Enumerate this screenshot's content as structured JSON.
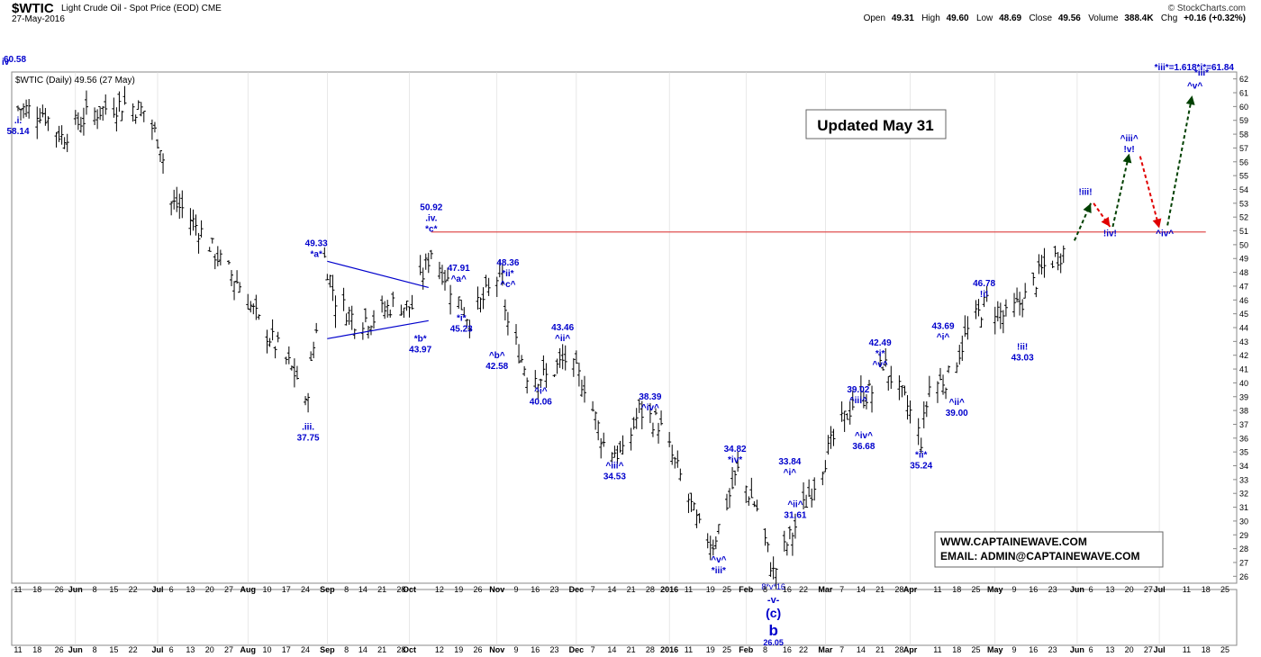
{
  "header": {
    "symbol": "$WTIC",
    "description": "Light Crude Oil - Spot Price (EOD) CME",
    "date": "27-May-2016",
    "brand": "© StockCharts.com",
    "ohlc": [
      {
        "label": "Open",
        "value": "49.31"
      },
      {
        "label": "High",
        "value": "49.60"
      },
      {
        "label": "Low",
        "value": "48.69"
      },
      {
        "label": "Close",
        "value": "49.56"
      },
      {
        "label": "Volume",
        "value": "388.4K"
      },
      {
        "label": "Chg",
        "value": "+0.16 (+0.32%)"
      }
    ]
  },
  "chart_data": {
    "type": "ohlc",
    "legend": "$WTIC (Daily) 49.56 (27 May)",
    "ylim": [
      25.5,
      62.5
    ],
    "y_ticks": [
      26,
      27,
      28,
      29,
      30,
      31,
      32,
      33,
      34,
      35,
      36,
      37,
      38,
      39,
      40,
      41,
      42,
      43,
      44,
      45,
      46,
      47,
      48,
      49,
      50,
      51,
      52,
      53,
      54,
      55,
      56,
      57,
      58,
      59,
      60,
      61,
      62
    ],
    "x_ticks": [
      "11",
      "18",
      "26",
      "Jun",
      "8",
      "15",
      "22",
      "Jul",
      "6",
      "13",
      "20",
      "27",
      "Aug",
      "10",
      "17",
      "24",
      "Sep",
      "8",
      "14",
      "21",
      "28",
      "Oct",
      "12",
      "19",
      "26",
      "Nov",
      "9",
      "16",
      "23",
      "Dec",
      "7",
      "14",
      "21",
      "28",
      "2016",
      "11",
      "19",
      "25",
      "Feb",
      "8",
      "16",
      "22",
      "Mar",
      "7",
      "14",
      "21",
      "28",
      "Apr",
      "11",
      "18",
      "25",
      "May",
      "9",
      "16",
      "23",
      "Jun",
      "6",
      "13",
      "20",
      "27",
      "Jul",
      "11",
      "18",
      "25"
    ],
    "x_tick_dates": [
      "2015-05-11",
      "2015-05-18",
      "2015-05-26",
      "2015-06-01",
      "2015-06-08",
      "2015-06-15",
      "2015-06-22",
      "2015-07-01",
      "2015-07-06",
      "2015-07-13",
      "2015-07-20",
      "2015-07-27",
      "2015-08-03",
      "2015-08-10",
      "2015-08-17",
      "2015-08-24",
      "2015-09-01",
      "2015-09-08",
      "2015-09-14",
      "2015-09-21",
      "2015-09-28",
      "2015-10-01",
      "2015-10-12",
      "2015-10-19",
      "2015-10-26",
      "2015-11-02",
      "2015-11-09",
      "2015-11-16",
      "2015-11-23",
      "2015-12-01",
      "2015-12-07",
      "2015-12-14",
      "2015-12-21",
      "2015-12-28",
      "2016-01-04",
      "2016-01-11",
      "2016-01-19",
      "2016-01-25",
      "2016-02-01",
      "2016-02-08",
      "2016-02-16",
      "2016-02-22",
      "2016-03-01",
      "2016-03-07",
      "2016-03-14",
      "2016-03-21",
      "2016-03-28",
      "2016-04-01",
      "2016-04-11",
      "2016-04-18",
      "2016-04-25",
      "2016-05-02",
      "2016-05-09",
      "2016-05-16",
      "2016-05-23",
      "2016-06-01",
      "2016-06-06",
      "2016-06-13",
      "2016-06-20",
      "2016-06-27",
      "2016-07-01",
      "2016-07-11",
      "2016-07-18",
      "2016-07-25"
    ],
    "anchors": [
      {
        "date": "2015-05-11",
        "close": 59.9
      },
      {
        "date": "2015-05-20",
        "close": 59.6
      },
      {
        "date": "2015-05-27",
        "close": 57.8
      },
      {
        "date": "2015-06-05",
        "close": 59.3
      },
      {
        "date": "2015-06-12",
        "close": 59.9
      },
      {
        "date": "2015-06-19",
        "close": 60.2
      },
      {
        "date": "2015-06-26",
        "close": 59.7
      },
      {
        "date": "2015-07-02",
        "close": 57.3
      },
      {
        "date": "2015-07-06",
        "close": 53.0
      },
      {
        "date": "2015-07-10",
        "close": 52.6
      },
      {
        "date": "2015-07-17",
        "close": 50.9
      },
      {
        "date": "2015-07-24",
        "close": 48.8
      },
      {
        "date": "2015-07-31",
        "close": 47.1
      },
      {
        "date": "2015-08-07",
        "close": 44.4
      },
      {
        "date": "2015-08-14",
        "close": 42.5
      },
      {
        "date": "2015-08-21",
        "close": 40.4
      },
      {
        "date": "2015-08-24",
        "close": 38.2
      },
      {
        "date": "2015-08-27",
        "close": 42.6
      },
      {
        "date": "2015-08-31",
        "close": 49.0
      },
      {
        "date": "2015-09-04",
        "close": 46.1
      },
      {
        "date": "2015-09-11",
        "close": 44.6
      },
      {
        "date": "2015-09-18",
        "close": 44.7
      },
      {
        "date": "2015-09-25",
        "close": 45.7
      },
      {
        "date": "2015-10-02",
        "close": 45.5
      },
      {
        "date": "2015-10-09",
        "close": 49.6
      },
      {
        "date": "2015-10-16",
        "close": 47.0
      },
      {
        "date": "2015-10-23",
        "close": 44.6
      },
      {
        "date": "2015-10-30",
        "close": 46.6
      },
      {
        "date": "2015-11-03",
        "close": 47.9
      },
      {
        "date": "2015-11-06",
        "close": 44.3
      },
      {
        "date": "2015-11-13",
        "close": 40.7
      },
      {
        "date": "2015-11-20",
        "close": 40.4
      },
      {
        "date": "2015-11-27",
        "close": 41.7
      },
      {
        "date": "2015-12-04",
        "close": 39.9
      },
      {
        "date": "2015-12-11",
        "close": 35.6
      },
      {
        "date": "2015-12-18",
        "close": 34.7
      },
      {
        "date": "2015-12-24",
        "close": 38.0
      },
      {
        "date": "2015-12-31",
        "close": 37.1
      },
      {
        "date": "2016-01-08",
        "close": 33.2
      },
      {
        "date": "2016-01-15",
        "close": 29.4
      },
      {
        "date": "2016-01-20",
        "close": 28.4
      },
      {
        "date": "2016-01-29",
        "close": 33.6
      },
      {
        "date": "2016-02-05",
        "close": 30.9
      },
      {
        "date": "2016-02-11",
        "close": 26.2
      },
      {
        "date": "2016-02-19",
        "close": 29.6
      },
      {
        "date": "2016-02-26",
        "close": 32.8
      },
      {
        "date": "2016-03-04",
        "close": 35.9
      },
      {
        "date": "2016-03-11",
        "close": 38.5
      },
      {
        "date": "2016-03-18",
        "close": 39.4
      },
      {
        "date": "2016-03-22",
        "close": 41.5
      },
      {
        "date": "2016-03-31",
        "close": 38.3
      },
      {
        "date": "2016-04-05",
        "close": 35.9
      },
      {
        "date": "2016-04-08",
        "close": 39.7
      },
      {
        "date": "2016-04-15",
        "close": 40.4
      },
      {
        "date": "2016-04-22",
        "close": 43.7
      },
      {
        "date": "2016-04-29",
        "close": 45.9
      },
      {
        "date": "2016-05-06",
        "close": 44.7
      },
      {
        "date": "2016-05-13",
        "close": 46.2
      },
      {
        "date": "2016-05-20",
        "close": 48.4
      },
      {
        "date": "2016-05-27",
        "close": 49.56
      }
    ],
    "resistance": {
      "price": 50.92,
      "from": "2015-10-09",
      "to": "2016-07-18"
    },
    "triangle": [
      {
        "date": "2015-09-01",
        "price": 48.8
      },
      {
        "date": "2015-10-08",
        "price": 46.9
      },
      {
        "date": "2015-09-01",
        "price": 43.2
      },
      {
        "date": "2015-10-08",
        "price": 44.5
      }
    ],
    "projections": [
      {
        "from": {
          "date": "2016-05-31",
          "price": 50.3
        },
        "to": {
          "date": "2016-06-06",
          "price": 53.0
        },
        "color": "#004000"
      },
      {
        "from": {
          "date": "2016-06-07",
          "price": 53.0
        },
        "to": {
          "date": "2016-06-13",
          "price": 51.3
        },
        "color": "#e00000"
      },
      {
        "from": {
          "date": "2016-06-14",
          "price": 51.3
        },
        "to": {
          "date": "2016-06-20",
          "price": 56.6
        },
        "color": "#004000"
      },
      {
        "from": {
          "date": "2016-06-24",
          "price": 56.4
        },
        "to": {
          "date": "2016-07-01",
          "price": 51.2
        },
        "color": "#e00000"
      },
      {
        "from": {
          "date": "2016-07-04",
          "price": 51.4
        },
        "to": {
          "date": "2016-07-13",
          "price": 60.8
        },
        "color": "#004000"
      }
    ],
    "annotations": [
      {
        "date": "2015-05-11",
        "price": 58.8,
        "lines": [
          ".i.",
          "58.14"
        ]
      },
      {
        "date": "2015-08-25",
        "price": 36.6,
        "lines": [
          ".iii.",
          "37.75"
        ]
      },
      {
        "date": "2015-08-28",
        "price": 49.9,
        "lines": [
          "49.33",
          "*a*"
        ]
      },
      {
        "date": "2015-10-05",
        "price": 43.0,
        "lines": [
          "*b*",
          "43.97"
        ]
      },
      {
        "date": "2015-10-09",
        "price": 52.5,
        "lines": [
          "50.92",
          ".iv.",
          "*c*"
        ]
      },
      {
        "date": "2015-10-19",
        "price": 48.1,
        "lines": [
          "47.91",
          "^a^"
        ]
      },
      {
        "date": "2015-10-20",
        "price": 44.5,
        "lines": [
          "*i*",
          "45.23"
        ]
      },
      {
        "date": "2015-11-02",
        "price": 41.8,
        "lines": [
          "^b^",
          "42.58"
        ]
      },
      {
        "date": "2015-11-06",
        "price": 48.5,
        "lines": [
          "48.36",
          "*ii*",
          "^c^"
        ]
      },
      {
        "date": "2015-11-18",
        "price": 39.2,
        "lines": [
          "^i^",
          "40.06"
        ]
      },
      {
        "date": "2015-11-26",
        "price": 43.8,
        "lines": [
          "43.46",
          "^ii^"
        ]
      },
      {
        "date": "2015-12-15",
        "price": 33.8,
        "lines": [
          "^iii^",
          "34.53"
        ]
      },
      {
        "date": "2015-12-28",
        "price": 38.8,
        "lines": [
          "38.39",
          "^iv^"
        ]
      },
      {
        "date": "2016-01-22",
        "price": 27.0,
        "lines": [
          "^v^",
          "*iii*"
        ]
      },
      {
        "date": "2016-01-28",
        "price": 35.0,
        "lines": [
          "34.82",
          "*iv*"
        ]
      },
      {
        "date": "2016-02-17",
        "price": 34.1,
        "lines": [
          "33.84",
          "^i^"
        ]
      },
      {
        "date": "2016-02-19",
        "price": 31.0,
        "lines": [
          "^ii^",
          "31.61"
        ]
      },
      {
        "date": "2016-03-13",
        "price": 39.3,
        "lines": [
          "39.02",
          "^iii^"
        ]
      },
      {
        "date": "2016-03-15",
        "price": 36.0,
        "lines": [
          "^iv^",
          "36.68"
        ]
      },
      {
        "date": "2016-03-21",
        "price": 42.7,
        "lines": [
          "42.49",
          "*i*",
          "^v^"
        ]
      },
      {
        "date": "2016-04-05",
        "price": 34.6,
        "lines": [
          "*ii*",
          "35.24"
        ]
      },
      {
        "date": "2016-04-13",
        "price": 43.9,
        "lines": [
          "43.69",
          "^i^"
        ]
      },
      {
        "date": "2016-04-18",
        "price": 38.4,
        "lines": [
          "^ii^",
          "39.00"
        ]
      },
      {
        "date": "2016-04-28",
        "price": 47.0,
        "lines": [
          "46.78",
          "!i!"
        ]
      },
      {
        "date": "2016-05-12",
        "price": 42.4,
        "lines": [
          "!ii!",
          "43.03"
        ]
      },
      {
        "date": "2016-06-04",
        "price": 53.6,
        "lines": [
          "!iii!"
        ]
      },
      {
        "date": "2016-06-13",
        "price": 50.6,
        "lines": [
          "!iv!"
        ]
      },
      {
        "date": "2016-06-20",
        "price": 57.5,
        "lines": [
          "^iii^",
          "!v!"
        ]
      },
      {
        "date": "2016-07-03",
        "price": 50.6,
        "lines": [
          "^iv^"
        ]
      },
      {
        "date": "2016-07-14",
        "price": 61.3,
        "lines": [
          "^v^"
        ]
      }
    ],
    "top_left_marks": {
      "price_label": "60.58",
      "wave_label": "iv"
    },
    "bottom_labels": {
      "lines": [
        "-v-",
        "(c)",
        "b"
      ],
      "price": "26.05"
    },
    "projection_target": "*iii*=1.618*i*=61.84",
    "projection_target_tag": "*iii*",
    "update_box": "Updated May 31",
    "contact_lines": [
      "WWW.CAPTAINEWAVE.COM",
      "EMAIL: ADMIN@CAPTAINEWAVE.COM"
    ],
    "lower_panel_marks": {
      "feb_label": "8*v*16"
    }
  },
  "colors": {
    "bars": "#000000",
    "labels": "#0000cc",
    "resistance": "#e05050",
    "triangle": "#0000cc"
  }
}
